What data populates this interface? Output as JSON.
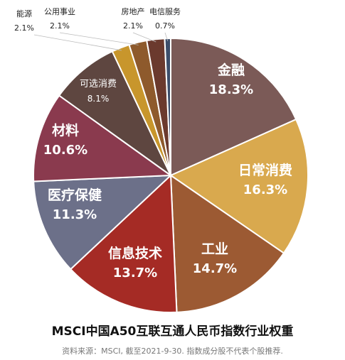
{
  "chart_data": {
    "type": "pie",
    "title": "MSCI中国A50互联互通人民币指数行业权重",
    "source": "资料来源：MSCI, 截至2021-9-30. 指数成分股不代表个股推荐.",
    "slices": [
      {
        "label": "金融",
        "value": 18.3,
        "value_text": "18.3%",
        "color": "#7b5a57"
      },
      {
        "label": "日常消费",
        "value": 16.3,
        "value_text": "16.3%",
        "color": "#d9a94e"
      },
      {
        "label": "工业",
        "value": 14.7,
        "value_text": "14.7%",
        "color": "#9c5a33"
      },
      {
        "label": "信息技术",
        "value": 13.7,
        "value_text": "13.7%",
        "color": "#a52b25"
      },
      {
        "label": "医疗保健",
        "value": 11.3,
        "value_text": "11.3%",
        "color": "#6c7089"
      },
      {
        "label": "材料",
        "value": 10.6,
        "value_text": "10.6%",
        "color": "#8a3a4e"
      },
      {
        "label": "可选消费",
        "value": 8.1,
        "value_text": "8.1%",
        "color": "#5e4640"
      },
      {
        "label": "能源",
        "value": 2.1,
        "value_text": "2.1%",
        "color": "#c8962c"
      },
      {
        "label": "公用事业",
        "value": 2.1,
        "value_text": "2.1%",
        "color": "#8e5a2c"
      },
      {
        "label": "房地产",
        "value": 2.1,
        "value_text": "2.1%",
        "color": "#6b3a2e"
      },
      {
        "label": "电信服务",
        "value": 0.7,
        "value_text": "0.7%",
        "color": "#3c4e6b"
      }
    ]
  }
}
